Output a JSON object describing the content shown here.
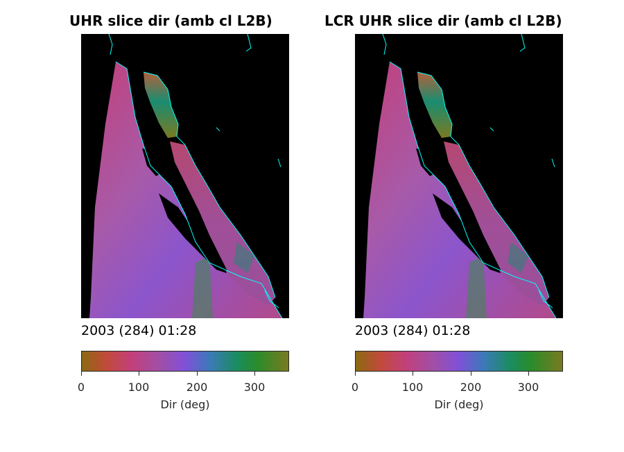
{
  "panels": [
    {
      "title": "UHR slice dir (amb cl L2B)",
      "date": "2003 (284) 01:28",
      "colorbar": {
        "ticks": [
          "0",
          "100",
          "200",
          "300"
        ],
        "label": "Dir (deg)",
        "range": [
          0,
          360
        ]
      }
    },
    {
      "title": "LCR UHR slice dir (amb cl L2B)",
      "date": "2003 (284) 01:28",
      "colorbar": {
        "ticks": [
          "0",
          "100",
          "200",
          "300"
        ],
        "label": "Dir (deg)",
        "range": [
          0,
          360
        ]
      }
    }
  ],
  "colors": {
    "background": "#000000",
    "coastline": "#00ffff",
    "colormap": [
      "#8a6a12",
      "#c24a3a",
      "#c2407a",
      "#a04fa8",
      "#8050d8",
      "#3b7ab8",
      "#1a8c60",
      "#2a8c2a",
      "#7a7a22"
    ]
  }
}
